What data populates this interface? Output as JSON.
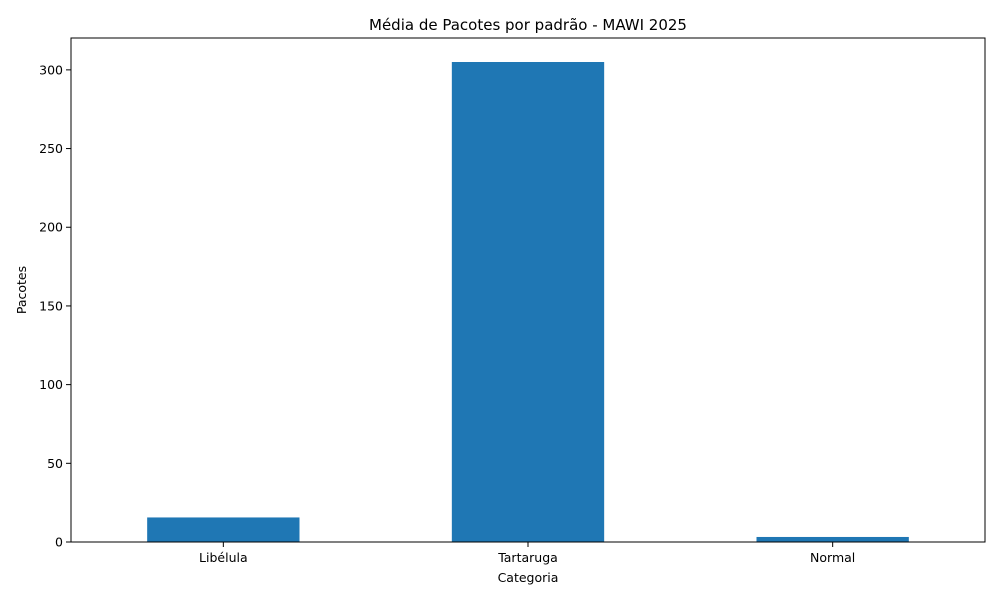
{
  "chart_data": {
    "type": "bar",
    "title": "Média de Pacotes por padrão - MAWI 2025",
    "xlabel": "Categoria",
    "ylabel": "Pacotes",
    "categories": [
      "Libélula",
      "Tartaruga",
      "Normal"
    ],
    "values": [
      15.6,
      305,
      3.2
    ],
    "ylim": [
      0,
      320.25
    ],
    "yticks": [
      0,
      50,
      100,
      150,
      200,
      250,
      300
    ],
    "bar_color": "#1f77b4",
    "grid": false,
    "legend": false
  }
}
